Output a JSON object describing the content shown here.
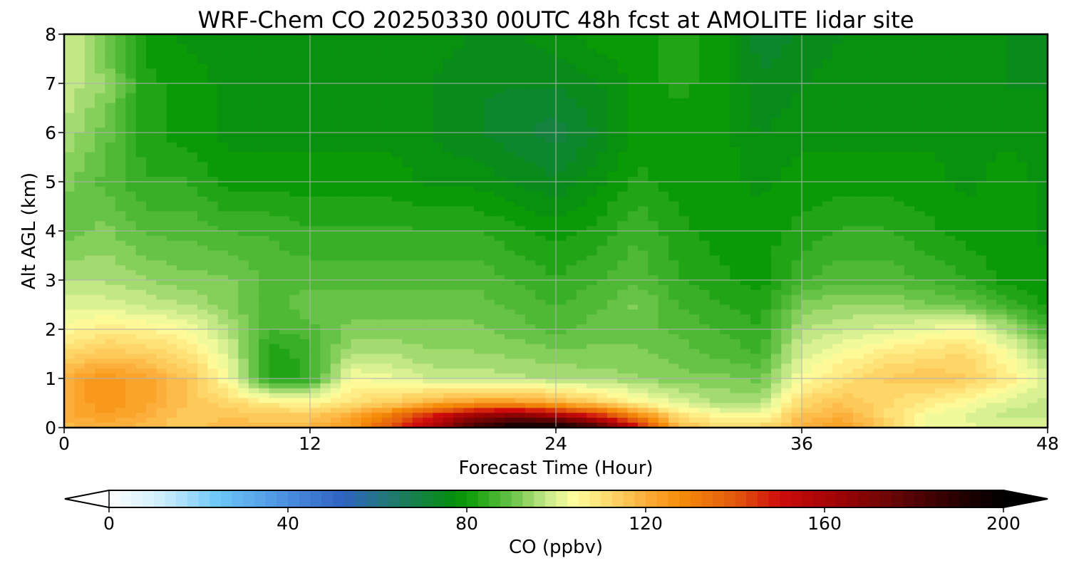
{
  "chart_data": {
    "type": "heatmap",
    "title": "WRF-Chem CO  20250330 00UTC 48h fcst at AMOLITE lidar site",
    "xlabel": "Forecast Time (Hour)",
    "ylabel": "Alt AGL (km)",
    "xlim": [
      0,
      48
    ],
    "ylim": [
      0,
      8
    ],
    "x_ticks": [
      "0",
      "12",
      "24",
      "36",
      "48"
    ],
    "y_ticks": [
      "0",
      "1",
      "2",
      "3",
      "4",
      "5",
      "6",
      "7",
      "8"
    ],
    "grid": true,
    "colorbar": {
      "label": "CO  (ppbv)",
      "range": [
        0,
        200
      ],
      "ticks": [
        "0",
        "40",
        "80",
        "120",
        "160",
        "200"
      ],
      "extend": "both",
      "stops": [
        {
          "value": 0,
          "color": "#ffffff"
        },
        {
          "value": 12,
          "color": "#cdeefd"
        },
        {
          "value": 24,
          "color": "#6ec8f8"
        },
        {
          "value": 40,
          "color": "#4a8fe0"
        },
        {
          "value": 52,
          "color": "#2f62c2"
        },
        {
          "value": 64,
          "color": "#1f7a6a"
        },
        {
          "value": 76,
          "color": "#068c14"
        },
        {
          "value": 80,
          "color": "#0a9a06"
        },
        {
          "value": 90,
          "color": "#66c346"
        },
        {
          "value": 98,
          "color": "#c8ea8a"
        },
        {
          "value": 104,
          "color": "#ffff9f"
        },
        {
          "value": 112,
          "color": "#fed86a"
        },
        {
          "value": 120,
          "color": "#fcaf3a"
        },
        {
          "value": 128,
          "color": "#f58b08"
        },
        {
          "value": 140,
          "color": "#e25a0c"
        },
        {
          "value": 150,
          "color": "#cf0c0c"
        },
        {
          "value": 162,
          "color": "#a10404"
        },
        {
          "value": 176,
          "color": "#650505"
        },
        {
          "value": 190,
          "color": "#260000"
        },
        {
          "value": 200,
          "color": "#000000"
        }
      ]
    },
    "hours": [
      0,
      2,
      4,
      6,
      8,
      10,
      12,
      14,
      16,
      18,
      20,
      22,
      24,
      26,
      28,
      30,
      32,
      34,
      36,
      38,
      40,
      42,
      44,
      46,
      48
    ],
    "levels_km": [
      0,
      0.25,
      0.5,
      1,
      1.5,
      2,
      2.5,
      3,
      4,
      5,
      6,
      7,
      8
    ],
    "values": [
      [
        118,
        120,
        118,
        114,
        118,
        118,
        119,
        125,
        142,
        160,
        185,
        200,
        200,
        185,
        150,
        118,
        112,
        112,
        120,
        125,
        115,
        104,
        102,
        100,
        100
      ],
      [
        120,
        124,
        120,
        114,
        116,
        114,
        114,
        120,
        132,
        148,
        162,
        168,
        160,
        146,
        128,
        110,
        104,
        104,
        116,
        120,
        112,
        104,
        101,
        98,
        98
      ],
      [
        120,
        126,
        122,
        116,
        112,
        108,
        106,
        110,
        114,
        120,
        124,
        124,
        120,
        114,
        106,
        100,
        96,
        96,
        112,
        116,
        112,
        108,
        104,
        100,
        98
      ],
      [
        120,
        126,
        122,
        116,
        104,
        82,
        84,
        104,
        102,
        98,
        98,
        97,
        96,
        95,
        94,
        92,
        92,
        90,
        104,
        110,
        114,
        116,
        114,
        108,
        100
      ],
      [
        112,
        115,
        114,
        110,
        100,
        82,
        85,
        96,
        96,
        94,
        94,
        93,
        92,
        92,
        92,
        90,
        88,
        86,
        100,
        104,
        108,
        110,
        112,
        104,
        94
      ],
      [
        104,
        108,
        106,
        104,
        96,
        86,
        88,
        92,
        92,
        92,
        92,
        90,
        88,
        90,
        90,
        88,
        86,
        84,
        96,
        98,
        100,
        102,
        104,
        96,
        86
      ],
      [
        100,
        100,
        98,
        96,
        92,
        88,
        90,
        90,
        90,
        90,
        90,
        88,
        86,
        88,
        92,
        86,
        84,
        82,
        92,
        94,
        94,
        92,
        90,
        86,
        80
      ],
      [
        96,
        96,
        94,
        92,
        92,
        88,
        88,
        88,
        88,
        88,
        88,
        86,
        84,
        86,
        88,
        84,
        82,
        80,
        86,
        88,
        88,
        86,
        84,
        80,
        80
      ],
      [
        90,
        92,
        88,
        88,
        86,
        86,
        84,
        84,
        84,
        84,
        84,
        82,
        80,
        82,
        86,
        82,
        80,
        80,
        82,
        84,
        84,
        82,
        80,
        80,
        78
      ],
      [
        92,
        88,
        84,
        84,
        80,
        80,
        80,
        80,
        80,
        78,
        78,
        76,
        74,
        78,
        82,
        80,
        80,
        78,
        80,
        80,
        80,
        80,
        78,
        80,
        78
      ],
      [
        96,
        90,
        82,
        80,
        78,
        78,
        78,
        78,
        78,
        76,
        74,
        72,
        70,
        74,
        80,
        80,
        80,
        76,
        78,
        78,
        78,
        78,
        78,
        78,
        78
      ],
      [
        98,
        94,
        82,
        80,
        78,
        78,
        78,
        78,
        78,
        76,
        74,
        74,
        74,
        76,
        80,
        82,
        80,
        74,
        76,
        78,
        78,
        78,
        78,
        76,
        76
      ],
      [
        100,
        90,
        80,
        78,
        78,
        78,
        78,
        78,
        78,
        78,
        76,
        76,
        78,
        80,
        80,
        82,
        80,
        72,
        74,
        76,
        78,
        78,
        78,
        76,
        74
      ]
    ]
  }
}
